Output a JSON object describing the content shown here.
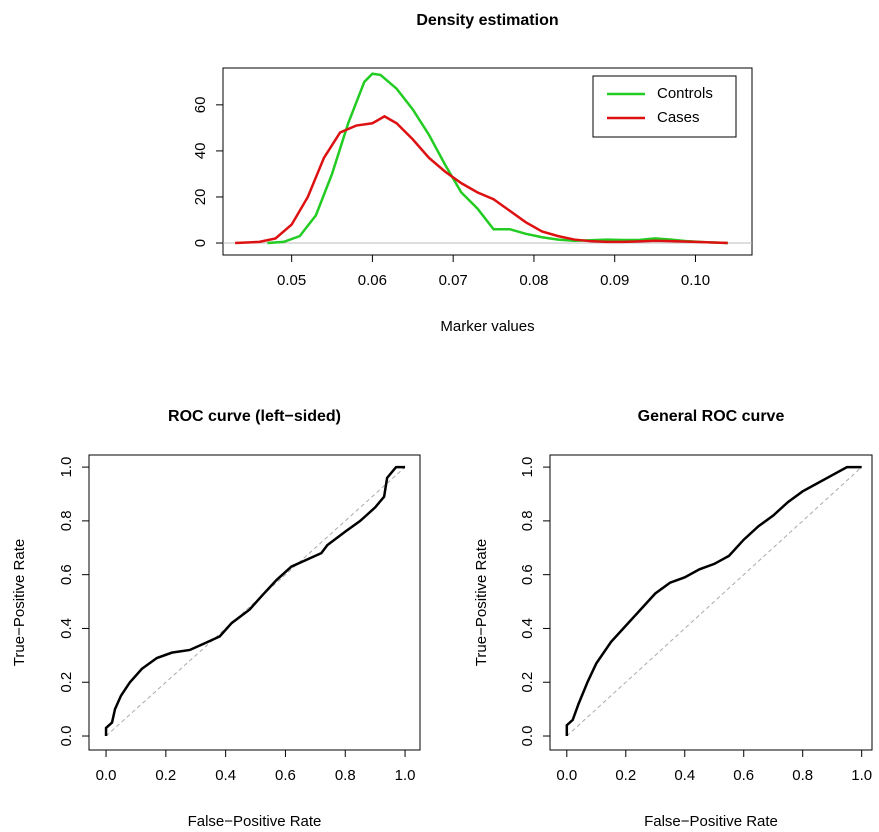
{
  "chart_data": [
    {
      "type": "line",
      "title": "Density estimation",
      "xlabel": "Marker values",
      "xlim": [
        0.0415,
        0.107
      ],
      "ylim": [
        -5.2,
        76
      ],
      "xticks": [
        0.05,
        0.06,
        0.07,
        0.08,
        0.09,
        {
          "value": 0.1,
          "label": "0.10"
        }
      ],
      "yticks": [
        0,
        20,
        40,
        60
      ],
      "legend": "topright",
      "series": [
        {
          "name": "Controls",
          "color": "#22cc22",
          "x": [
            0.047,
            0.049,
            0.051,
            0.053,
            0.055,
            0.057,
            0.059,
            0.06,
            0.061,
            0.063,
            0.065,
            0.067,
            0.069,
            0.071,
            0.073,
            0.075,
            0.077,
            0.079,
            0.081,
            0.083,
            0.085,
            0.087,
            0.089,
            0.091,
            0.093,
            0.095,
            0.097,
            0.099,
            0.101,
            0.104
          ],
          "values": [
            0,
            0.5,
            3,
            12,
            30,
            52,
            70,
            73.5,
            73,
            67,
            58,
            47,
            34,
            22,
            15,
            6,
            6,
            4,
            2.5,
            1.5,
            1,
            1.2,
            1.5,
            1.3,
            1.3,
            2,
            1.5,
            0.8,
            0.4,
            0
          ]
        },
        {
          "name": "Cases",
          "color": "#dd1111",
          "x": [
            0.043,
            0.046,
            0.048,
            0.05,
            0.052,
            0.054,
            0.056,
            0.058,
            0.06,
            0.0615,
            0.063,
            0.065,
            0.067,
            0.069,
            0.071,
            0.073,
            0.075,
            0.077,
            0.079,
            0.081,
            0.083,
            0.085,
            0.087,
            0.089,
            0.091,
            0.093,
            0.095,
            0.097,
            0.1,
            0.104
          ],
          "values": [
            0,
            0.5,
            2,
            8,
            20,
            37,
            48,
            51,
            52,
            55,
            52,
            45,
            37,
            31,
            26,
            22,
            19,
            14,
            9,
            5,
            3,
            1.5,
            0.8,
            0.5,
            0.5,
            0.7,
            1,
            0.8,
            0.5,
            0
          ]
        }
      ]
    },
    {
      "type": "line",
      "title": "ROC curve (left−sided)",
      "xlabel": "False−Positive Rate",
      "ylabel": "True−Positive Rate",
      "xlim": [
        -0.057,
        1.05
      ],
      "ylim": [
        -0.052,
        1.045
      ],
      "xticks": [
        {
          "value": 0,
          "label": "0.0"
        },
        0.2,
        0.4,
        0.6,
        0.8,
        {
          "value": 1,
          "label": "1.0"
        }
      ],
      "yticks": [
        {
          "value": 0,
          "label": "0.0"
        },
        0.2,
        0.4,
        0.6,
        0.8,
        {
          "value": 1,
          "label": "1.0"
        }
      ],
      "series": [
        {
          "color": "#000000",
          "x": [
            0,
            0,
            0.02,
            0.03,
            0.05,
            0.08,
            0.12,
            0.17,
            0.22,
            0.28,
            0.32,
            0.38,
            0.42,
            0.48,
            0.52,
            0.57,
            0.62,
            0.68,
            0.72,
            0.74,
            0.8,
            0.85,
            0.9,
            0.93,
            0.94,
            0.97,
            1
          ],
          "values": [
            0,
            0.03,
            0.05,
            0.1,
            0.15,
            0.2,
            0.25,
            0.29,
            0.31,
            0.32,
            0.34,
            0.37,
            0.42,
            0.47,
            0.52,
            0.58,
            0.63,
            0.66,
            0.68,
            0.71,
            0.76,
            0.8,
            0.85,
            0.89,
            0.96,
            1,
            1
          ]
        }
      ]
    },
    {
      "type": "line",
      "title": "General ROC curve",
      "xlabel": "False−Positive Rate",
      "ylabel": "True−Positive Rate",
      "xlim": [
        -0.057,
        1.035
      ],
      "ylim": [
        -0.052,
        1.045
      ],
      "xticks": [
        {
          "value": 0,
          "label": "0.0"
        },
        0.2,
        0.4,
        0.6,
        0.8,
        {
          "value": 1,
          "label": "1.0"
        }
      ],
      "yticks": [
        {
          "value": 0,
          "label": "0.0"
        },
        0.2,
        0.4,
        0.6,
        0.8,
        {
          "value": 1,
          "label": "1.0"
        }
      ],
      "series": [
        {
          "color": "#000000",
          "x": [
            0,
            0,
            0.02,
            0.04,
            0.07,
            0.1,
            0.15,
            0.2,
            0.25,
            0.3,
            0.35,
            0.4,
            0.45,
            0.5,
            0.55,
            0.6,
            0.65,
            0.7,
            0.75,
            0.8,
            0.85,
            0.9,
            0.95,
            1
          ],
          "values": [
            0,
            0.04,
            0.06,
            0.12,
            0.2,
            0.27,
            0.35,
            0.41,
            0.47,
            0.53,
            0.57,
            0.59,
            0.62,
            0.64,
            0.67,
            0.73,
            0.78,
            0.82,
            0.87,
            0.91,
            0.94,
            0.97,
            1,
            1
          ]
        }
      ]
    }
  ]
}
